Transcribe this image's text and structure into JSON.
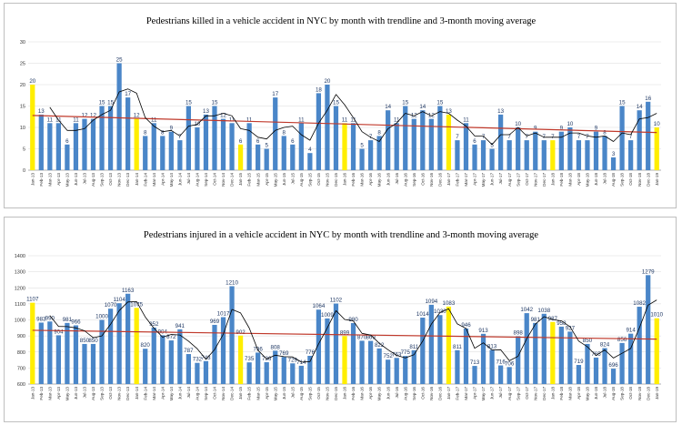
{
  "chart_data": [
    {
      "type": "bar",
      "title": "Pedestrians killed in a vehicle accident  in NYC  by month with trendline and 3-month moving average",
      "categories": [
        "Jan-13",
        "Feb-13",
        "Mar-13",
        "Apr-13",
        "May-13",
        "Jun-13",
        "Jul-13",
        "Aug-13",
        "Sep-13",
        "Oct-13",
        "Nov-13",
        "Dec-13",
        "Jan-14",
        "Feb-14",
        "Mar-14",
        "Apr-14",
        "May-14",
        "Jun-14",
        "Jul-14",
        "Aug-14",
        "Sep-14",
        "Oct-14",
        "Nov-14",
        "Dec-14",
        "Jan-15",
        "Feb-15",
        "Mar-15",
        "Apr-15",
        "May-15",
        "Jun-15",
        "Jul-15",
        "Aug-15",
        "Sep-15",
        "Oct-15",
        "Nov-15",
        "Dec-15",
        "Jan-16",
        "Feb-16",
        "Mar-16",
        "Apr-16",
        "May-16",
        "Jun-16",
        "Jul-16",
        "Aug-16",
        "Sep-16",
        "Oct-16",
        "Nov-16",
        "Dec-16",
        "Jan-17",
        "Feb-17",
        "Mar-17",
        "Apr-17",
        "May-17",
        "Jun-17",
        "Jul-17",
        "Aug-17",
        "Sep-17",
        "Oct-17",
        "Nov-17",
        "Dec-17",
        "Jan-18",
        "Feb-18",
        "Mar-18",
        "Apr-18",
        "May-18",
        "Jun-18",
        "Jul-18",
        "Aug-18",
        "Sep-18",
        "Oct-18",
        "Nov-18",
        "Dec-18",
        "Jan-19"
      ],
      "values": [
        20,
        13,
        11,
        11,
        6,
        11,
        12,
        12,
        15,
        15,
        25,
        17,
        12,
        8,
        11,
        8,
        9,
        7,
        15,
        10,
        13,
        15,
        12,
        11,
        6,
        11,
        6,
        5,
        17,
        8,
        6,
        11,
        4,
        18,
        20,
        15,
        11,
        11,
        5,
        7,
        8,
        14,
        11,
        15,
        12,
        14,
        12,
        15,
        13,
        7,
        11,
        6,
        7,
        5,
        13,
        7,
        10,
        7,
        9,
        7,
        7,
        9,
        10,
        7,
        7,
        9,
        8,
        3,
        15,
        7,
        14,
        16,
        10
      ],
      "moving_average_3": [
        null,
        null,
        14.7,
        11.7,
        9.3,
        9.3,
        9.7,
        11.7,
        13.0,
        14.0,
        18.3,
        19.0,
        18.0,
        12.3,
        10.3,
        9.0,
        9.3,
        8.0,
        10.3,
        10.7,
        12.7,
        12.7,
        13.3,
        12.7,
        9.7,
        9.3,
        7.7,
        7.3,
        9.3,
        10.0,
        10.3,
        8.3,
        7.0,
        11.0,
        14.0,
        17.7,
        15.3,
        12.3,
        9.0,
        7.7,
        6.7,
        9.7,
        11.0,
        13.3,
        12.7,
        13.7,
        12.7,
        13.7,
        13.3,
        11.7,
        10.3,
        8.0,
        8.0,
        6.0,
        8.3,
        8.3,
        10.0,
        8.0,
        8.7,
        7.7,
        7.7,
        7.7,
        8.7,
        8.7,
        8.0,
        7.7,
        8.0,
        6.7,
        8.7,
        8.3,
        12.0,
        12.3,
        13.3
      ],
      "trendline": [
        12.8,
        8.8
      ],
      "highlight_months": [
        "Jan-13",
        "Jan-14",
        "Jan-15",
        "Jan-16",
        "Jan-17",
        "Jan-18",
        "Jan-19"
      ],
      "ylim": [
        0,
        30
      ],
      "yticks": [
        0,
        5,
        10,
        15,
        20,
        25,
        30
      ],
      "colors": {
        "bar": "#4a86c8",
        "highlight": "#ffee00",
        "trend": "#c0392b",
        "moving_avg": "#000000",
        "label": "#1f3864"
      }
    },
    {
      "type": "bar",
      "title": "Pedestrians injured in a vehicle accident in NYC by month with trendline and 3-month moving average",
      "categories": [
        "Jan-13",
        "Feb-13",
        "Mar-13",
        "Apr-13",
        "May-13",
        "Jun-13",
        "Jul-13",
        "Aug-13",
        "Sep-13",
        "Oct-13",
        "Nov-13",
        "Dec-13",
        "Jan-14",
        "Feb-14",
        "Mar-14",
        "Apr-14",
        "May-14",
        "Jun-14",
        "Jul-14",
        "Aug-14",
        "Sep-14",
        "Oct-14",
        "Nov-14",
        "Dec-14",
        "Jan-15",
        "Feb-15",
        "Mar-15",
        "Apr-15",
        "May-15",
        "Jun-15",
        "Jul-15",
        "Aug-15",
        "Sep-15",
        "Oct-15",
        "Nov-15",
        "Dec-15",
        "Jan-16",
        "Feb-16",
        "Mar-16",
        "Apr-16",
        "May-16",
        "Jun-16",
        "Jul-16",
        "Aug-16",
        "Sep-16",
        "Oct-16",
        "Nov-16",
        "Dec-16",
        "Jan-17",
        "Feb-17",
        "Mar-17",
        "Apr-17",
        "May-17",
        "Jun-17",
        "Jul-17",
        "Aug-17",
        "Sep-17",
        "Oct-17",
        "Nov-17",
        "Dec-17",
        "Jan-18",
        "Feb-18",
        "Mar-18",
        "Apr-18",
        "May-18",
        "Jun-18",
        "Jul-18",
        "Aug-18",
        "Sep-18",
        "Oct-18",
        "Nov-18",
        "Dec-18",
        "Jan-19"
      ],
      "values": [
        1107,
        983,
        990,
        904,
        981,
        966,
        850,
        850,
        1000,
        1070,
        1104,
        1163,
        1075,
        820,
        952,
        904,
        872,
        941,
        787,
        732,
        743,
        969,
        1017,
        1210,
        902,
        735,
        796,
        736,
        808,
        769,
        729,
        714,
        776,
        1064,
        1009,
        1102,
        899,
        980,
        870,
        869,
        822,
        752,
        763,
        775,
        811,
        1014,
        1094,
        1030,
        1083,
        811,
        946,
        713,
        913,
        813,
        716,
        706,
        898,
        1042,
        981,
        1038,
        987,
        958,
        927,
        719,
        850,
        765,
        824,
        696,
        856,
        914,
        1082,
        1279,
        1010
      ],
      "moving_average_3": [
        null,
        null,
        1027,
        959,
        958,
        950,
        932,
        889,
        900,
        973,
        1058,
        1112,
        1114,
        1019,
        949,
        892,
        909,
        906,
        867,
        820,
        754,
        815,
        910,
        1065,
        1043,
        949,
        811,
        756,
        780,
        771,
        769,
        737,
        740,
        851,
        950,
        1058,
        1003,
        994,
        916,
        906,
        854,
        814,
        779,
        763,
        783,
        867,
        973,
        1046,
        1069,
        975,
        947,
        823,
        857,
        813,
        814,
        745,
        773,
        882,
        974,
        1020,
        1002,
        994,
        957,
        868,
        832,
        778,
        813,
        762,
        792,
        822,
        951,
        1092,
        1124
      ],
      "trendline": [
        935,
        880
      ],
      "highlight_months": [
        "Jan-13",
        "Jan-14",
        "Jan-15",
        "Jan-16",
        "Jan-17",
        "Jan-18",
        "Jan-19"
      ],
      "ylim": [
        600,
        1400
      ],
      "yticks": [
        600,
        700,
        800,
        900,
        1000,
        1100,
        1200,
        1300,
        1400
      ],
      "colors": {
        "bar": "#4a86c8",
        "highlight": "#ffee00",
        "trend": "#c0392b",
        "moving_avg": "#000000",
        "label": "#1f3864"
      }
    }
  ]
}
